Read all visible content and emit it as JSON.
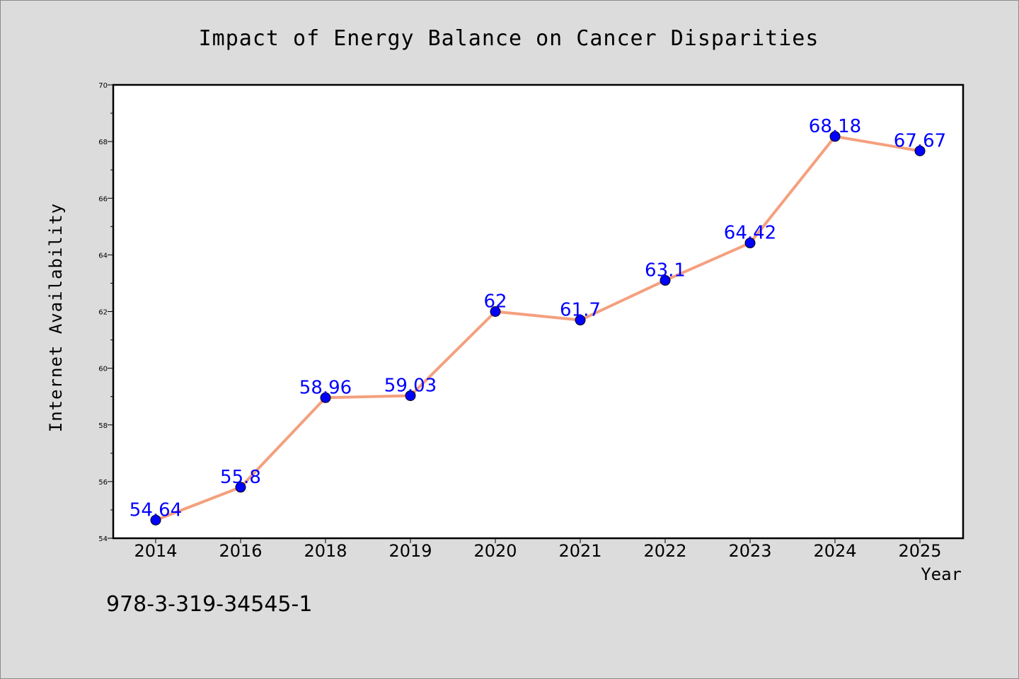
{
  "chart_data": {
    "type": "line",
    "title": "Impact of Energy Balance on Cancer Disparities",
    "xlabel": "Year",
    "ylabel": "Internet Availability",
    "categories": [
      "2014",
      "2016",
      "2018",
      "2019",
      "2020",
      "2021",
      "2022",
      "2023",
      "2024",
      "2025"
    ],
    "series": [
      {
        "values": [
          54.64,
          55.8,
          58.96,
          59.03,
          62,
          61.7,
          63.1,
          64.42,
          68.18,
          67.67
        ],
        "data_labels": [
          "54.64",
          "55.8",
          "58.96",
          "59.03",
          "62",
          "61.7",
          "63.1",
          "64.42",
          "68.18",
          "67.67"
        ]
      }
    ],
    "ylim": [
      54,
      70
    ],
    "yticks": [
      "54",
      "56",
      "58",
      "60",
      "62",
      "64",
      "66",
      "68",
      "70"
    ],
    "grid": false,
    "line_color": "#f4a07e",
    "marker_color": "#0000ff",
    "label_color": "#0000ff",
    "plot_background": "#ffffff",
    "figure_background": "#dcdcdc"
  },
  "caption": "978-3-319-34545-1"
}
